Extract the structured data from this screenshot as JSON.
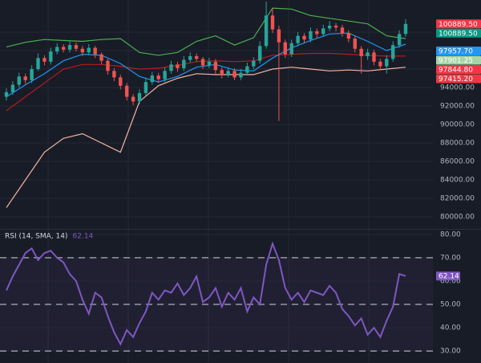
{
  "chart_data": [
    {
      "type": "candlestick",
      "open": [
        93000,
        93500,
        94300,
        95200,
        94800,
        96000,
        97200,
        96800,
        97900,
        98400,
        98100,
        98600,
        98200,
        97800,
        98300,
        97600,
        96900,
        95800,
        95100,
        94200,
        93000,
        92500,
        93400,
        94600,
        95300,
        94900,
        95800,
        96500,
        96100,
        97000,
        97400,
        97100,
        96400,
        96800,
        95900,
        95400,
        95800,
        95100,
        95600,
        96300,
        96900,
        98500,
        101800,
        100300,
        98900,
        97600,
        98800,
        99600,
        99200,
        100100,
        99800,
        100400,
        100700,
        100500,
        99900,
        99300,
        98200,
        97400,
        97800,
        96800,
        96300,
        97100,
        98600,
        99800
      ],
      "high": [
        93900,
        94700,
        95600,
        95500,
        96400,
        97700,
        97500,
        98300,
        98800,
        98700,
        99000,
        98900,
        98500,
        98700,
        98500,
        97800,
        97100,
        96100,
        95400,
        94500,
        93300,
        93800,
        95000,
        95700,
        95600,
        96200,
        96900,
        96800,
        97400,
        97800,
        97700,
        97300,
        97200,
        97100,
        96200,
        96200,
        96100,
        96000,
        96700,
        97300,
        99000,
        103300,
        102600,
        100700,
        99200,
        99200,
        100000,
        99900,
        100500,
        100400,
        100800,
        101200,
        101000,
        100800,
        100200,
        99600,
        98500,
        98200,
        98100,
        97100,
        97500,
        99000,
        100200,
        101400
      ],
      "low": [
        92600,
        93200,
        94000,
        94400,
        94500,
        95800,
        96400,
        96500,
        97600,
        97800,
        97800,
        97900,
        97400,
        97500,
        97200,
        96500,
        95400,
        94700,
        93800,
        92600,
        92100,
        92200,
        93100,
        94300,
        94500,
        94600,
        95500,
        95700,
        95800,
        96700,
        96800,
        96000,
        96100,
        95500,
        95000,
        95100,
        94800,
        94800,
        95300,
        96000,
        96600,
        98200,
        99900,
        90400,
        97200,
        97300,
        98500,
        98800,
        98900,
        99400,
        99500,
        100100,
        100100,
        99500,
        98900,
        97800,
        95500,
        97000,
        96400,
        95900,
        95500,
        96800,
        98300,
        99500
      ],
      "close": [
        93500,
        94300,
        95200,
        94800,
        96000,
        97200,
        96800,
        97900,
        98400,
        98100,
        98600,
        98200,
        97800,
        98300,
        97600,
        96900,
        95800,
        95100,
        94200,
        93000,
        92500,
        93400,
        94600,
        95300,
        94900,
        95800,
        96500,
        96100,
        97000,
        97400,
        97100,
        96400,
        96800,
        95900,
        95400,
        95800,
        95100,
        95600,
        96300,
        96900,
        98500,
        101800,
        100300,
        98900,
        97600,
        98800,
        99600,
        99200,
        100100,
        99800,
        100400,
        100700,
        100500,
        99900,
        99300,
        98200,
        97400,
        97800,
        96800,
        96300,
        97100,
        98600,
        99800,
        100889.5
      ],
      "up_color": "#26a69a",
      "down_color": "#ef5350",
      "overlays": {
        "x": [
          0,
          3,
          6,
          9,
          12,
          15,
          18,
          21,
          24,
          27,
          30,
          33,
          36,
          39,
          42,
          45,
          48,
          51,
          54,
          57,
          60,
          63
        ],
        "series": [
          {
            "color": "#f4b4a0",
            "values": [
              81000,
              84000,
              87000,
              88500,
              89000,
              88000,
              87000,
              92500,
              94200,
              95000,
              95500,
              95400,
              95400,
              95400,
              96000,
              96200,
              96000,
              95800,
              95900,
              95800,
              96000,
              96200
            ]
          },
          {
            "color": "#4caf50",
            "values": [
              98400,
              98900,
              99200,
              99100,
              99000,
              99200,
              99300,
              97800,
              97500,
              97800,
              99000,
              99600,
              98600,
              99400,
              102600,
              102500,
              101800,
              101500,
              101200,
              100900,
              99600,
              99300
            ]
          },
          {
            "color": "#b71c1c",
            "values": [
              91500,
              93000,
              94500,
              96000,
              96500,
              96500,
              96300,
              96000,
              96100,
              96400,
              96800,
              96900,
              96800,
              96900,
              97500,
              97600,
              97700,
              97700,
              97600,
              97500,
              97400,
              97415.2
            ]
          },
          {
            "color": "#2196f3",
            "values": [
              93000,
              94300,
              95500,
              96900,
              97600,
              97500,
              96600,
              95200,
              94600,
              95200,
              96200,
              96500,
              95900,
              95800,
              97200,
              98300,
              99100,
              99800,
              99900,
              99000,
              98000,
              98700
            ]
          }
        ]
      },
      "ylim": [
        78700,
        103480
      ],
      "yticks": [
        {
          "value": 80000,
          "label": "80000.00"
        },
        {
          "value": 82000,
          "label": "82000.00"
        },
        {
          "value": 84000,
          "label": "84000.00"
        },
        {
          "value": 86000,
          "label": "86000.00"
        },
        {
          "value": 88000,
          "label": "88000.00"
        },
        {
          "value": 90000,
          "label": "90000.00"
        },
        {
          "value": 92000,
          "label": "92000.00"
        },
        {
          "value": 94000,
          "label": "94000.00"
        },
        {
          "value": 96000,
          "label": "96000.00"
        },
        {
          "value": 98000,
          "label": "98000.00"
        },
        {
          "value": 100000,
          "label": "100000.00"
        }
      ],
      "price_labels": [
        {
          "value": 100889.5,
          "label": "100889.50",
          "color": "#f23645"
        },
        {
          "value": 100889.5,
          "label": "100889.50",
          "color": "#089981"
        },
        {
          "value": 97957.7,
          "label": "97957.70",
          "color": "#2196f3"
        },
        {
          "value": 97901.25,
          "label": "97901.25",
          "color": "#a5d6a7"
        },
        {
          "value": 97844.8,
          "label": "97844.80",
          "color": "#f23645"
        },
        {
          "value": 97415.2,
          "label": "97415.20",
          "color": "#f23645"
        }
      ],
      "grid": true
    },
    {
      "type": "line",
      "title": "RSI (14, SMA, 14)",
      "series": [
        {
          "color": "#7e57c2",
          "values": [
            56,
            62,
            67,
            72,
            74,
            69,
            72,
            73,
            70,
            68,
            63,
            60,
            52,
            46,
            55,
            53,
            45,
            38,
            33,
            39,
            36,
            42,
            47,
            55,
            52,
            56,
            55,
            59,
            54,
            57,
            62,
            51,
            53,
            57,
            49,
            55,
            52,
            57,
            47,
            53,
            50,
            67,
            76,
            69,
            57,
            52,
            55,
            51,
            56,
            55,
            54,
            58,
            55,
            48,
            45,
            41,
            44,
            37,
            40,
            36,
            43,
            49,
            63,
            62.14
          ]
        }
      ],
      "levels": [
        70,
        50,
        30
      ],
      "ylim": [
        24.9,
        82
      ],
      "yticks": [
        {
          "value": 30,
          "label": "30.00"
        },
        {
          "value": 40,
          "label": "40.00"
        },
        {
          "value": 50,
          "label": "50.00"
        },
        {
          "value": 60,
          "label": "60.00"
        },
        {
          "value": 70,
          "label": "70.00"
        },
        {
          "value": 80,
          "label": "80.00"
        }
      ],
      "grid": true
    }
  ]
}
